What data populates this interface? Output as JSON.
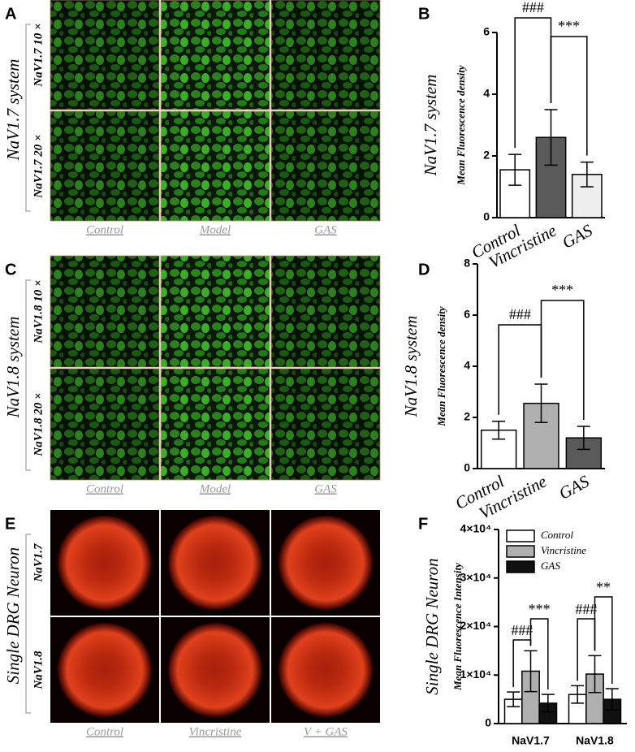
{
  "image_panels": [
    {
      "letter": "A",
      "side_label": "NaV1.7 system",
      "rows": [
        "NaV1.7 10 ×",
        "NaV1.7 20 ×"
      ],
      "columns": [
        "Control",
        "Model",
        "GAS"
      ]
    },
    {
      "letter": "C",
      "side_label": "NaV1.8 system",
      "rows": [
        "NaV1.8 10 ×",
        "NaV1.8 20 ×"
      ],
      "columns": [
        "Control",
        "Model",
        "GAS"
      ]
    },
    {
      "letter": "E",
      "side_label": "Single DRG Neuron",
      "rows": [
        "NaV1.7",
        "NaV1.8"
      ],
      "columns": [
        "Control",
        "Vincristine",
        "V + GAS"
      ]
    }
  ],
  "chart_data": [
    {
      "type": "bar",
      "label": "B",
      "side_label": "NaV1.7 system",
      "y_label": "Mean Fluorescence density",
      "categories": [
        "Control",
        "Vincristine",
        "GAS"
      ],
      "values": [
        1.55,
        2.6,
        1.4
      ],
      "errors": [
        0.5,
        0.9,
        0.4
      ],
      "colors": [
        "#ffffff",
        "#5a5a5a",
        "#eeeeee"
      ],
      "ylim": [
        0,
        6
      ],
      "yticks": [
        0,
        2,
        4,
        6
      ],
      "annotations": [
        "###",
        "***"
      ]
    },
    {
      "type": "bar",
      "label": "D",
      "side_label": "NaV1.8 system",
      "y_label": "Mean Fluorescence density",
      "categories": [
        "Control",
        "Vincristine",
        "GAS"
      ],
      "values": [
        1.5,
        2.55,
        1.2
      ],
      "errors": [
        0.35,
        0.75,
        0.45
      ],
      "colors": [
        "#ffffff",
        "#b0b0b0",
        "#5a5a5a"
      ],
      "ylim": [
        0,
        8
      ],
      "yticks": [
        0,
        2,
        4,
        6,
        8
      ],
      "annotations": [
        "###",
        "***"
      ]
    },
    {
      "type": "grouped-bar",
      "label": "F",
      "side_label": "Single DRG Neuron",
      "y_label": "Mean Fluorescence Intensity",
      "categories": [
        "NaV1.7",
        "NaV1.8"
      ],
      "series": [
        {
          "name": "Control",
          "color": "#ffffff",
          "values": [
            5000,
            6000
          ],
          "errors": [
            1500,
            1800
          ]
        },
        {
          "name": "Vincristine",
          "color": "#b0b0b0",
          "values": [
            10800,
            10200
          ],
          "errors": [
            4200,
            3800
          ]
        },
        {
          "name": "GAS",
          "color": "#111111",
          "values": [
            4200,
            5000
          ],
          "errors": [
            1800,
            2200
          ]
        }
      ],
      "ylim": [
        0,
        40000
      ],
      "yticks": [
        0,
        {
          "value": 10000,
          "label": "1×10⁴"
        },
        {
          "value": 20000,
          "label": "2×10⁴"
        },
        {
          "value": 30000,
          "label": "3×10⁴"
        },
        {
          "value": 40000,
          "label": "4×10⁴"
        }
      ],
      "annotations": [
        "###",
        "***",
        "###",
        "**"
      ]
    }
  ]
}
